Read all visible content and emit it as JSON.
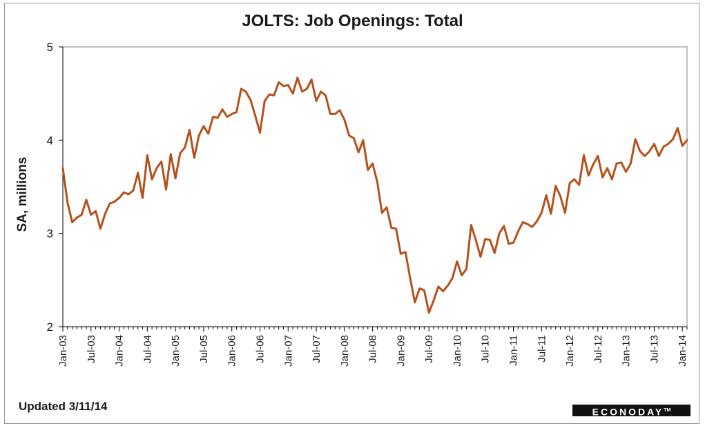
{
  "chart_data": {
    "type": "line",
    "title": "JOLTS: Job Openings: Total",
    "ylabel": "SA, millions",
    "xlabel": "",
    "ylim": [
      2,
      5
    ],
    "yticks": [
      2,
      3,
      4,
      5
    ],
    "start_month": "Jan-03",
    "x_tick_labels": [
      "Jan-03",
      "Jul-03",
      "Jan-04",
      "Jul-04",
      "Jan-05",
      "Jul-05",
      "Jan-06",
      "Jul-06",
      "Jan-07",
      "Jul-07",
      "Jan-08",
      "Jul-08",
      "Jan-09",
      "Jul-09",
      "Jan-10",
      "Jul-10",
      "Jan-11",
      "Jul-11",
      "Jan-12",
      "Jul-12",
      "Jan-13",
      "Jul-13",
      "Jan-14"
    ],
    "grid": false,
    "series": [
      {
        "color": "#b5501c",
        "values": [
          3.7,
          3.33,
          3.12,
          3.17,
          3.2,
          3.36,
          3.2,
          3.24,
          3.05,
          3.21,
          3.32,
          3.34,
          3.38,
          3.44,
          3.42,
          3.46,
          3.65,
          3.38,
          3.84,
          3.58,
          3.7,
          3.77,
          3.47,
          3.85,
          3.59,
          3.86,
          3.92,
          4.11,
          3.81,
          4.05,
          4.15,
          4.07,
          4.25,
          4.24,
          4.33,
          4.25,
          4.28,
          4.3,
          4.55,
          4.52,
          4.43,
          4.26,
          4.08,
          4.42,
          4.49,
          4.48,
          4.62,
          4.58,
          4.59,
          4.5,
          4.67,
          4.52,
          4.55,
          4.65,
          4.42,
          4.52,
          4.48,
          4.28,
          4.28,
          4.32,
          4.22,
          4.05,
          4.02,
          3.87,
          4.0,
          3.68,
          3.75,
          3.55,
          3.22,
          3.28,
          3.06,
          3.05,
          2.78,
          2.8,
          2.52,
          2.26,
          2.41,
          2.39,
          2.15,
          2.28,
          2.43,
          2.38,
          2.44,
          2.52,
          2.7,
          2.55,
          2.62,
          3.09,
          2.93,
          2.75,
          2.94,
          2.93,
          2.79,
          3.0,
          3.08,
          2.89,
          2.9,
          3.02,
          3.12,
          3.1,
          3.07,
          3.13,
          3.22,
          3.41,
          3.21,
          3.51,
          3.4,
          3.22,
          3.54,
          3.58,
          3.52,
          3.84,
          3.62,
          3.74,
          3.83,
          3.6,
          3.7,
          3.58,
          3.75,
          3.76,
          3.66,
          3.75,
          4.01,
          3.88,
          3.83,
          3.88,
          3.96,
          3.83,
          3.93,
          3.96,
          4.01,
          4.13,
          3.94,
          4.0
        ]
      }
    ]
  },
  "footnote": "Updated 3/11/14",
  "logo": {
    "text": "ECONODAY",
    "mark": "TM"
  }
}
